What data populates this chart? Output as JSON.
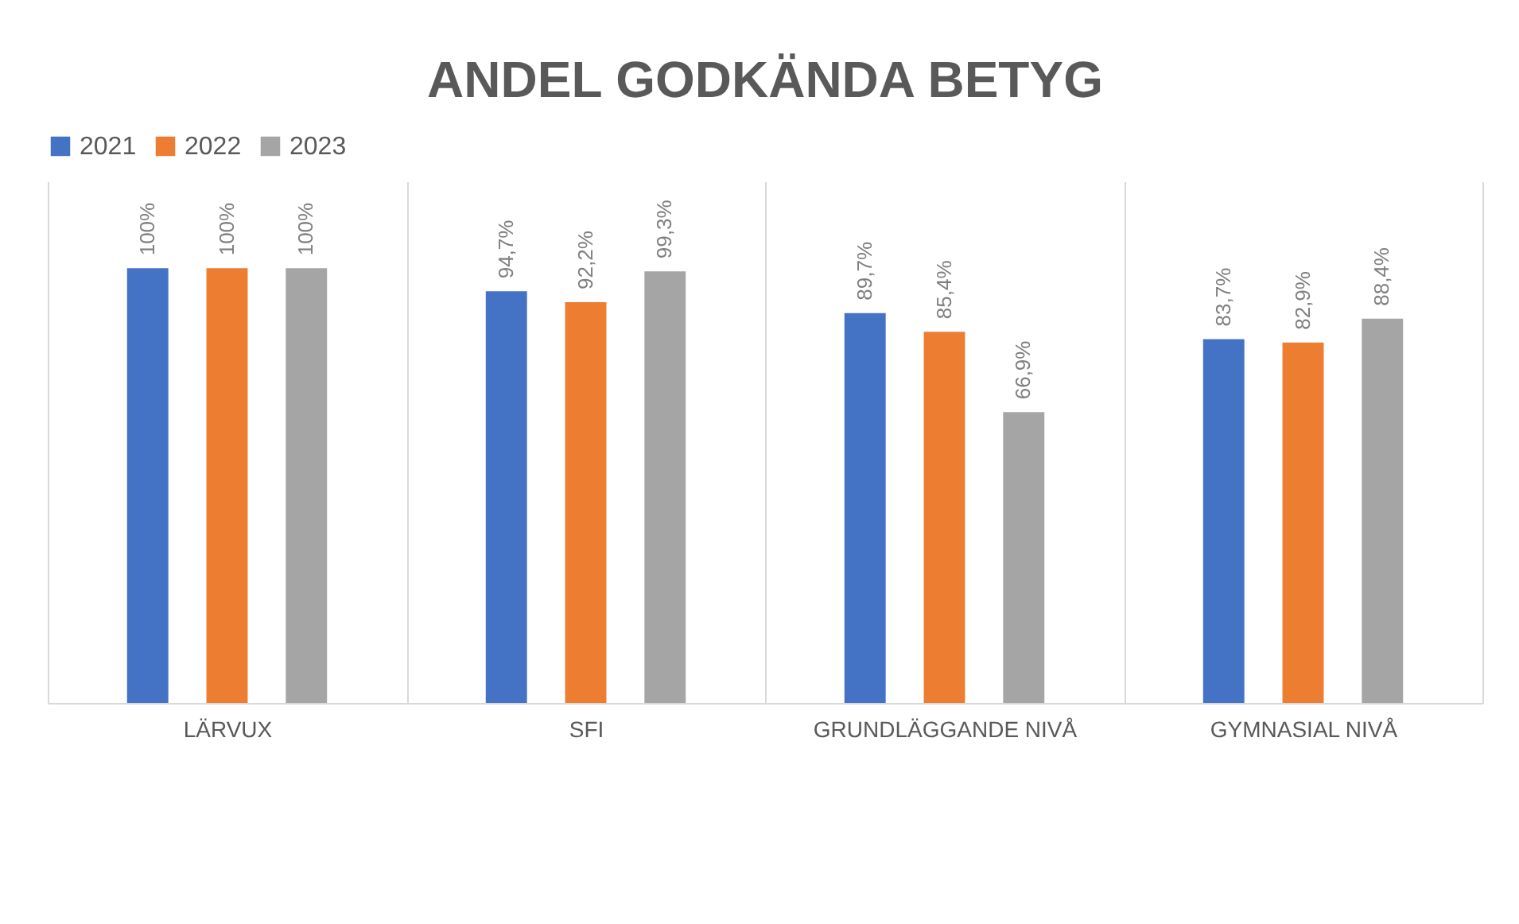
{
  "chart_data": {
    "type": "bar",
    "title": "ANDEL GODKÄNDA BETYG",
    "categories": [
      "LÄRVUX",
      "SFI",
      "GRUNDLÄGGANDE NIVÅ",
      "GYMNASIAL NIVÅ"
    ],
    "series": [
      {
        "name": "2021",
        "color": "#4472c4",
        "values": [
          100,
          94.7,
          89.7,
          83.7
        ],
        "value_labels": [
          "100%",
          "94,7%",
          "89,7%",
          "83,7%"
        ]
      },
      {
        "name": "2022",
        "color": "#ed7d31",
        "values": [
          100,
          92.2,
          85.4,
          82.9
        ],
        "value_labels": [
          "100%",
          "92,2%",
          "85,4%",
          "82,9%"
        ]
      },
      {
        "name": "2023",
        "color": "#a5a5a5",
        "values": [
          100,
          99.3,
          66.9,
          88.4
        ],
        "value_labels": [
          "100%",
          "99,3%",
          "66,9%",
          "88,4%"
        ]
      }
    ],
    "ylim": [
      0,
      120
    ],
    "grid": "x",
    "legend": "top",
    "tick_labels": "x"
  }
}
